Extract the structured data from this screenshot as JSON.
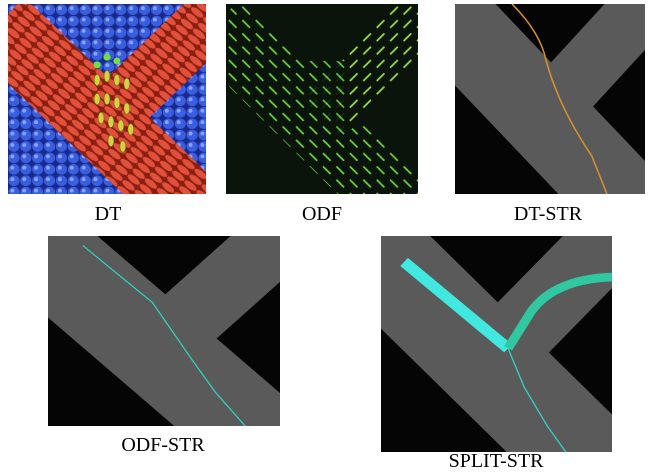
{
  "panels": [
    {
      "label": "DT"
    },
    {
      "label": "ODF"
    },
    {
      "label": "DT-STR"
    },
    {
      "label": "ODF-STR"
    },
    {
      "label": "SPLIT-STR"
    }
  ]
}
